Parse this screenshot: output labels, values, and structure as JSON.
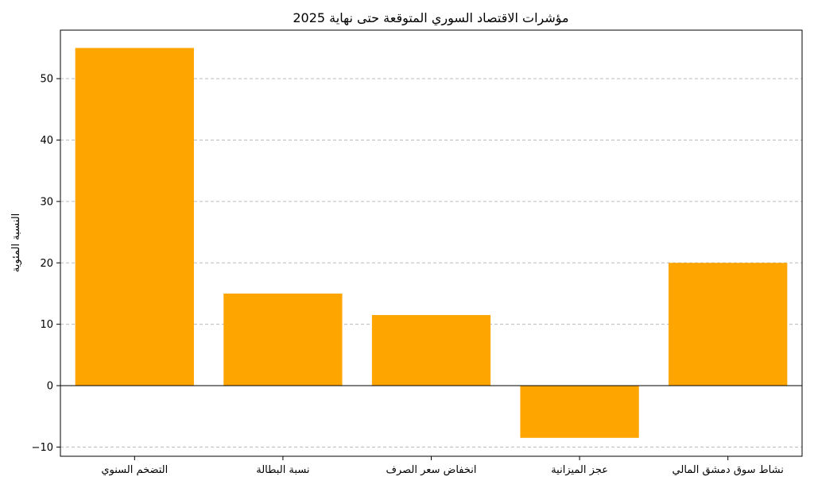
{
  "chart_data": {
    "type": "bar",
    "title": "مؤشرات الاقتصاد السوري المتوقعة حتى نهاية 2025",
    "xlabel": "",
    "ylabel": "النسبة المئوية",
    "categories": [
      "التضخم السنوي",
      "نسبة البطالة",
      "انخفاض سعر الصرف",
      "عجز الميزانية",
      "نشاط سوق دمشق المالي"
    ],
    "values": [
      55,
      15,
      11.5,
      -8.5,
      20
    ],
    "ylim": [
      -11.5,
      57.9
    ],
    "yticks": [
      -10,
      0,
      10,
      20,
      30,
      40,
      50
    ],
    "ytick_labels": [
      "−10",
      "0",
      "10",
      "20",
      "30",
      "40",
      "50"
    ],
    "grid": "y-dashed",
    "bar_color": "#FFA500",
    "zero_line": true
  }
}
